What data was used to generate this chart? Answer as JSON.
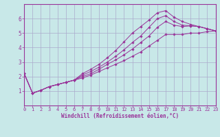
{
  "bg_color": "#c8e8e8",
  "grid_color": "#aaaacc",
  "line_color": "#993399",
  "xlabel": "Windchill (Refroidissement éolien,°C)",
  "xlim": [
    0,
    23
  ],
  "ylim": [
    0,
    7
  ],
  "yticks": [
    1,
    2,
    3,
    4,
    5,
    6
  ],
  "xticks": [
    0,
    1,
    2,
    3,
    4,
    5,
    6,
    7,
    8,
    9,
    10,
    11,
    12,
    13,
    14,
    15,
    16,
    17,
    18,
    19,
    20,
    21,
    22,
    23
  ],
  "lines": [
    {
      "x": [
        0,
        1,
        2,
        3,
        4,
        5,
        6,
        7,
        8,
        9,
        10,
        11,
        12,
        13,
        14,
        15,
        16,
        17,
        18,
        19,
        20,
        21,
        22,
        23
      ],
      "y": [
        2.2,
        0.85,
        1.05,
        1.3,
        1.45,
        1.6,
        1.75,
        1.9,
        2.1,
        2.35,
        2.6,
        2.85,
        3.1,
        3.4,
        3.7,
        4.1,
        4.5,
        4.9,
        4.9,
        4.9,
        5.0,
        5.0,
        5.1,
        5.15
      ]
    },
    {
      "x": [
        0,
        1,
        2,
        3,
        4,
        5,
        6,
        7,
        8,
        9,
        10,
        11,
        12,
        13,
        14,
        15,
        16,
        17,
        18,
        19,
        20,
        21,
        22,
        23
      ],
      "y": [
        2.2,
        0.85,
        1.05,
        1.3,
        1.45,
        1.6,
        1.75,
        2.0,
        2.2,
        2.5,
        2.85,
        3.15,
        3.5,
        3.9,
        4.35,
        4.8,
        5.4,
        5.8,
        5.55,
        5.45,
        5.5,
        5.45,
        5.3,
        5.15
      ]
    },
    {
      "x": [
        0,
        1,
        2,
        3,
        4,
        5,
        6,
        7,
        8,
        9,
        10,
        11,
        12,
        13,
        14,
        15,
        16,
        17,
        18,
        19,
        20,
        21,
        22,
        23
      ],
      "y": [
        2.2,
        0.85,
        1.05,
        1.3,
        1.45,
        1.6,
        1.75,
        2.1,
        2.35,
        2.65,
        3.0,
        3.4,
        3.85,
        4.35,
        4.8,
        5.4,
        6.0,
        6.2,
        5.8,
        5.55,
        5.5,
        5.45,
        5.3,
        5.15
      ]
    },
    {
      "x": [
        0,
        1,
        2,
        3,
        4,
        5,
        6,
        7,
        8,
        9,
        10,
        11,
        12,
        13,
        14,
        15,
        16,
        17,
        18,
        19,
        20,
        21,
        22,
        23
      ],
      "y": [
        2.2,
        0.85,
        1.05,
        1.3,
        1.45,
        1.6,
        1.75,
        2.2,
        2.5,
        2.85,
        3.3,
        3.8,
        4.4,
        5.0,
        5.45,
        5.9,
        6.4,
        6.55,
        6.1,
        5.8,
        5.6,
        5.45,
        5.3,
        5.15
      ]
    }
  ]
}
